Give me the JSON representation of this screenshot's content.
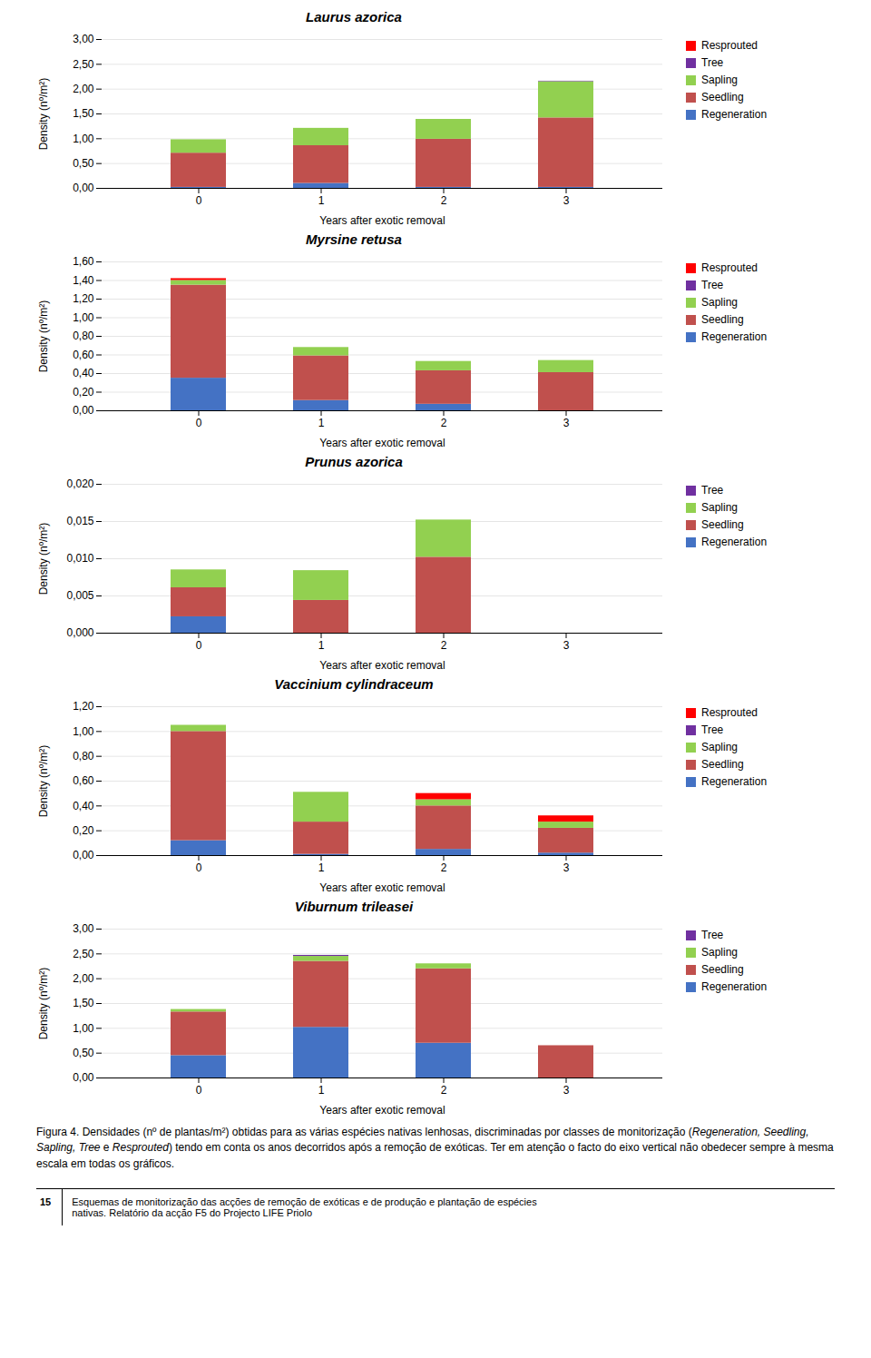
{
  "chart_data": [
    {
      "type": "bar",
      "stacked": true,
      "title": "Laurus azorica",
      "categories": [
        0,
        1,
        2,
        3
      ],
      "xlabel": "Years after exotic removal",
      "ylabel": "Density (nº/m²)",
      "ylim": [
        0,
        3.0
      ],
      "yticks": [
        {
          "value": 0.0,
          "label": "0,00"
        },
        {
          "value": 0.5,
          "label": "0,50"
        },
        {
          "value": 1.0,
          "label": "1,00"
        },
        {
          "value": 1.5,
          "label": "1,50"
        },
        {
          "value": 2.0,
          "label": "2,00"
        },
        {
          "value": 2.5,
          "label": "2,50"
        },
        {
          "value": 3.0,
          "label": "3,00"
        }
      ],
      "grid": true,
      "legend": "right",
      "series": [
        {
          "name": "Regeneration",
          "color": "#4472C4",
          "values": [
            0.02,
            0.1,
            0.02,
            0.02
          ]
        },
        {
          "name": "Seedling",
          "color": "#C0504D",
          "values": [
            0.69,
            0.76,
            0.97,
            1.4
          ]
        },
        {
          "name": "Sapling",
          "color": "#92D050",
          "values": [
            0.27,
            0.35,
            0.4,
            0.73
          ]
        },
        {
          "name": "Tree",
          "color": "#7030A0",
          "values": [
            0.0,
            0.0,
            0.0,
            0.01
          ]
        },
        {
          "name": "Resprouted",
          "color": "#FF0000",
          "values": [
            0.0,
            0.0,
            0.0,
            0.0
          ]
        }
      ]
    },
    {
      "type": "bar",
      "stacked": true,
      "title": "Myrsine retusa",
      "categories": [
        0,
        1,
        2,
        3
      ],
      "xlabel": "Years after exotic removal",
      "ylabel": "Density (nº/m²)",
      "ylim": [
        0,
        1.6
      ],
      "yticks": [
        {
          "value": 0.0,
          "label": "0,00"
        },
        {
          "value": 0.2,
          "label": "0,20"
        },
        {
          "value": 0.4,
          "label": "0,40"
        },
        {
          "value": 0.6,
          "label": "0,60"
        },
        {
          "value": 0.8,
          "label": "0,80"
        },
        {
          "value": 1.0,
          "label": "1,00"
        },
        {
          "value": 1.2,
          "label": "1,20"
        },
        {
          "value": 1.4,
          "label": "1,40"
        },
        {
          "value": 1.6,
          "label": "1,60"
        }
      ],
      "grid": true,
      "legend": "right",
      "series": [
        {
          "name": "Regeneration",
          "color": "#4472C4",
          "values": [
            0.35,
            0.11,
            0.07,
            0.0
          ]
        },
        {
          "name": "Seedling",
          "color": "#C0504D",
          "values": [
            1.0,
            0.48,
            0.36,
            0.41
          ]
        },
        {
          "name": "Sapling",
          "color": "#92D050",
          "values": [
            0.05,
            0.09,
            0.1,
            0.13
          ]
        },
        {
          "name": "Tree",
          "color": "#7030A0",
          "values": [
            0.0,
            0.0,
            0.0,
            0.0
          ]
        },
        {
          "name": "Resprouted",
          "color": "#FF0000",
          "values": [
            0.02,
            0.0,
            0.0,
            0.0
          ]
        }
      ]
    },
    {
      "type": "bar",
      "stacked": true,
      "title": "Prunus azorica",
      "categories": [
        0,
        1,
        2,
        3
      ],
      "xlabel": "Years after exotic removal",
      "ylabel": "Density (nº/m²)",
      "ylim": [
        0,
        0.02
      ],
      "yticks": [
        {
          "value": 0.0,
          "label": "0,000"
        },
        {
          "value": 0.005,
          "label": "0,005"
        },
        {
          "value": 0.01,
          "label": "0,010"
        },
        {
          "value": 0.015,
          "label": "0,015"
        },
        {
          "value": 0.02,
          "label": "0,020"
        }
      ],
      "grid": true,
      "legend": "right",
      "series": [
        {
          "name": "Regeneration",
          "color": "#4472C4",
          "values": [
            0.0022,
            0.0,
            0.0,
            0.0
          ]
        },
        {
          "name": "Seedling",
          "color": "#C0504D",
          "values": [
            0.0039,
            0.0044,
            0.0102,
            0.0
          ]
        },
        {
          "name": "Sapling",
          "color": "#92D050",
          "values": [
            0.0024,
            0.004,
            0.005,
            0.0
          ]
        },
        {
          "name": "Tree",
          "color": "#7030A0",
          "values": [
            0.0,
            0.0,
            0.0,
            0.0
          ]
        }
      ]
    },
    {
      "type": "bar",
      "stacked": true,
      "title": "Vaccinium cylindraceum",
      "categories": [
        0,
        1,
        2,
        3
      ],
      "xlabel": "Years after exotic removal",
      "ylabel": "Density (nº/m²)",
      "ylim": [
        0,
        1.2
      ],
      "yticks": [
        {
          "value": 0.0,
          "label": "0,00"
        },
        {
          "value": 0.2,
          "label": "0,20"
        },
        {
          "value": 0.4,
          "label": "0,40"
        },
        {
          "value": 0.6,
          "label": "0,60"
        },
        {
          "value": 0.8,
          "label": "0,80"
        },
        {
          "value": 1.0,
          "label": "1,00"
        },
        {
          "value": 1.2,
          "label": "1,20"
        }
      ],
      "grid": true,
      "legend": "right",
      "series": [
        {
          "name": "Regeneration",
          "color": "#4472C4",
          "values": [
            0.12,
            0.01,
            0.05,
            0.02
          ]
        },
        {
          "name": "Seedling",
          "color": "#C0504D",
          "values": [
            0.88,
            0.26,
            0.35,
            0.2
          ]
        },
        {
          "name": "Sapling",
          "color": "#92D050",
          "values": [
            0.05,
            0.24,
            0.05,
            0.05
          ]
        },
        {
          "name": "Tree",
          "color": "#7030A0",
          "values": [
            0.0,
            0.0,
            0.0,
            0.0
          ]
        },
        {
          "name": "Resprouted",
          "color": "#FF0000",
          "values": [
            0.0,
            0.0,
            0.05,
            0.05
          ]
        }
      ]
    },
    {
      "type": "bar",
      "stacked": true,
      "title": "Viburnum trileasei",
      "categories": [
        0,
        1,
        2,
        3
      ],
      "xlabel": "Years after exotic removal",
      "ylabel": "Density (nº/m²)",
      "ylim": [
        0,
        3.0
      ],
      "yticks": [
        {
          "value": 0.0,
          "label": "0,00"
        },
        {
          "value": 0.5,
          "label": "0,50"
        },
        {
          "value": 1.0,
          "label": "1,00"
        },
        {
          "value": 1.5,
          "label": "1,50"
        },
        {
          "value": 2.0,
          "label": "2,00"
        },
        {
          "value": 2.5,
          "label": "2,50"
        },
        {
          "value": 3.0,
          "label": "3,00"
        }
      ],
      "grid": true,
      "legend": "right",
      "series": [
        {
          "name": "Regeneration",
          "color": "#4472C4",
          "values": [
            0.45,
            1.02,
            0.7,
            0.0
          ]
        },
        {
          "name": "Seedling",
          "color": "#C0504D",
          "values": [
            0.88,
            1.33,
            1.5,
            0.65
          ]
        },
        {
          "name": "Sapling",
          "color": "#92D050",
          "values": [
            0.05,
            0.1,
            0.1,
            0.0
          ]
        },
        {
          "name": "Tree",
          "color": "#7030A0",
          "values": [
            0.0,
            0.02,
            0.0,
            0.0
          ]
        }
      ]
    }
  ],
  "caption": [
    "Figura 4. Densidades (nº de plantas/m²) obtidas para as várias espécies nativas lenhosas, discriminadas por classes de monitorização (",
    "Regeneration, Seedling, Sapling, Tree",
    " e ",
    "Resprouted",
    ") tendo em conta os anos decorridos após a remoção de exóticas. Ter em atenção o facto do eixo vertical não obedecer sempre à mesma escala em todas os gráficos."
  ],
  "page": 15,
  "footer": "Esquemas de monitorização das acções de remoção de exóticas e de produção e plantação de espécies\nnativas. Relatório da acção F5 do Projecto LIFE Priolo"
}
